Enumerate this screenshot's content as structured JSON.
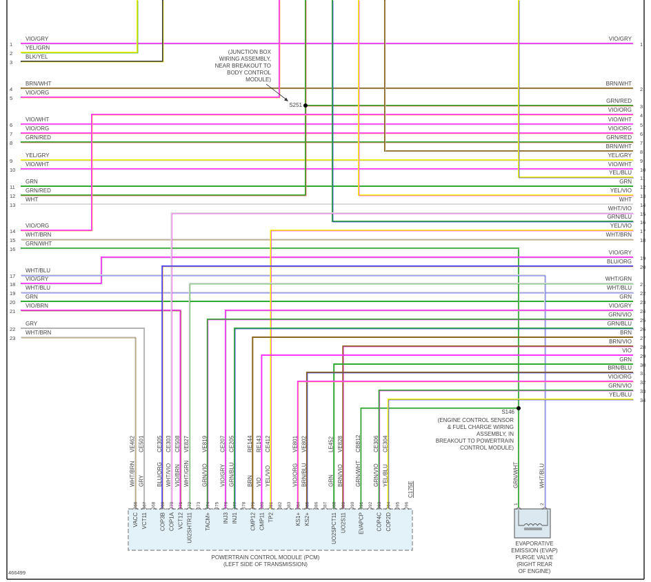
{
  "figure_number": "466499",
  "left_rows": [
    {
      "num": "1",
      "label": "VIO/GRY"
    },
    {
      "num": "2",
      "label": "YEL/GRN"
    },
    {
      "num": "3",
      "label": "BLK/YEL"
    },
    {
      "num": "4",
      "label": "BRN/WHT"
    },
    {
      "num": "5",
      "label": "VIO/ORG"
    },
    {
      "num": "6",
      "label": "VIO/WHT"
    },
    {
      "num": "7",
      "label": "VIO/ORG"
    },
    {
      "num": "8",
      "label": "GRN/RED"
    },
    {
      "num": "9",
      "label": "YEL/GRY"
    },
    {
      "num": "10",
      "label": "VIO/WHT"
    },
    {
      "num": "11",
      "label": "GRN"
    },
    {
      "num": "12",
      "label": "GRN/RED"
    },
    {
      "num": "13",
      "label": "WHT"
    },
    {
      "num": "14",
      "label": "VIO/ORG"
    },
    {
      "num": "15",
      "label": "WHT/BRN"
    },
    {
      "num": "16",
      "label": "GRN/WHT"
    },
    {
      "num": "17",
      "label": "WHT/BLU"
    },
    {
      "num": "18",
      "label": "VIO/GRY"
    },
    {
      "num": "19",
      "label": "WHT/BLU"
    },
    {
      "num": "20",
      "label": "GRN"
    },
    {
      "num": "21",
      "label": "VIO/BRN"
    },
    {
      "num": "22",
      "label": "GRY"
    },
    {
      "num": "23",
      "label": "WHT/BRN"
    }
  ],
  "right_rows": [
    {
      "num": "1",
      "label": "VIO/GRY"
    },
    {
      "num": "2",
      "label": "BRN/WHT"
    },
    {
      "num": "3",
      "label": "GRN/RED"
    },
    {
      "num": "4",
      "label": "VIO/ORG"
    },
    {
      "num": "5",
      "label": "VIO/WHT"
    },
    {
      "num": "6",
      "label": "VIO/ORG"
    },
    {
      "num": "7",
      "label": "GRN/RED"
    },
    {
      "num": "8",
      "label": "BRN/WHT"
    },
    {
      "num": "9",
      "label": "YEL/GRY"
    },
    {
      "num": "10",
      "label": "VIO/WHT"
    },
    {
      "num": "11",
      "label": "YEL/BLU"
    },
    {
      "num": "12",
      "label": "GRN"
    },
    {
      "num": "13",
      "label": "YEL/VIO"
    },
    {
      "num": "14",
      "label": "WHT"
    },
    {
      "num": "15",
      "label": "WHT/VIO"
    },
    {
      "num": "16",
      "label": "GRN/BLU"
    },
    {
      "num": "17",
      "label": "YEL/VIO"
    },
    {
      "num": "18",
      "label": "WHT/BRN"
    },
    {
      "num": "19",
      "label": "VIO/GRY"
    },
    {
      "num": "20",
      "label": "BLU/ORG"
    },
    {
      "num": "21",
      "label": "WHT/GRN"
    },
    {
      "num": "22",
      "label": "WHT/BLU"
    },
    {
      "num": "23",
      "label": "GRN"
    },
    {
      "num": "24",
      "label": "VIO/GRY"
    },
    {
      "num": "25",
      "label": "GRN/VIO"
    },
    {
      "num": "26",
      "label": "GRN/BLU"
    },
    {
      "num": "27",
      "label": "BRN"
    },
    {
      "num": "28",
      "label": "BRN/VIO"
    },
    {
      "num": "29",
      "label": "VIO"
    },
    {
      "num": "30",
      "label": "GRN"
    },
    {
      "num": "31",
      "label": "BRN/BLU"
    },
    {
      "num": "32",
      "label": "VIO/ORG"
    },
    {
      "num": "33",
      "label": "GRN/VIO"
    },
    {
      "num": "34",
      "label": "YEL/BLU"
    }
  ],
  "splices": {
    "s251": {
      "id": "S251",
      "note": [
        "(JUNCTION BOX",
        "WIRING ASSEMBLY,",
        "NEAR BREAKOUT TO",
        "BODY CONTROL",
        "MODULE)"
      ]
    },
    "s146": {
      "id": "S146",
      "note": [
        "(ENGINE CONTROL SENSOR",
        "& FUEL CHARGE WIRING",
        "ASSEMBLY, IN",
        "BREAKOUT TO POWERTRAIN",
        "CONTROL MODULE)"
      ]
    }
  },
  "pcm": {
    "connector_id": "C175E",
    "title": [
      "POWERTRAIN CONTROL MODULE (PCM)",
      "(LEFT SIDE OF TRANSMISSION)"
    ],
    "pins": [
      {
        "pin": "66",
        "name": "VACC",
        "wire": "WHT/BRN",
        "circuit": "VE462"
      },
      {
        "pin": "67",
        "name": "VCT11",
        "wire": "GRY",
        "circuit": "CE501"
      },
      {
        "pin": "68",
        "name": "",
        "wire": "",
        "circuit": ""
      },
      {
        "pin": "69",
        "name": "COP3B",
        "wire": "BLU/ORG",
        "circuit": "CE305"
      },
      {
        "pin": "70",
        "name": "COP1A",
        "wire": "WHT/VIO",
        "circuit": "CE303"
      },
      {
        "pin": "71",
        "name": "VCT12",
        "wire": "VIO/BRN",
        "circuit": "CE508"
      },
      {
        "pin": "72",
        "name": "U02SHTR11",
        "wire": "WHT/GRN",
        "circuit": "VE827"
      },
      {
        "pin": "73",
        "name": "",
        "wire": "",
        "circuit": ""
      },
      {
        "pin": "74",
        "name": "TACM+",
        "wire": "GRN/VIO",
        "circuit": "VE819"
      },
      {
        "pin": "75",
        "name": "",
        "wire": "",
        "circuit": ""
      },
      {
        "pin": "76",
        "name": "INJ3",
        "wire": "VIO/GRY",
        "circuit": "CE207"
      },
      {
        "pin": "77",
        "name": "INJ1",
        "wire": "GRN/BLU",
        "circuit": "CE205"
      },
      {
        "pin": "78",
        "name": "",
        "wire": "",
        "circuit": ""
      },
      {
        "pin": "79",
        "name": "CMP12",
        "wire": "BRN",
        "circuit": "RE144"
      },
      {
        "pin": "80",
        "name": "CMP11",
        "wire": "VIO",
        "circuit": "RE143"
      },
      {
        "pin": "81",
        "name": "TP2",
        "wire": "YEL/VIO",
        "circuit": "CE412"
      },
      {
        "pin": "82",
        "name": "",
        "wire": "",
        "circuit": ""
      },
      {
        "pin": "83",
        "name": "",
        "wire": "",
        "circuit": ""
      },
      {
        "pin": "84",
        "name": "KS1+",
        "wire": "VIO/ORG",
        "circuit": "VE801"
      },
      {
        "pin": "85",
        "name": "KS2+",
        "wire": "BRN/BLU",
        "circuit": "VE802"
      },
      {
        "pin": "86",
        "name": "",
        "wire": "",
        "circuit": ""
      },
      {
        "pin": "87",
        "name": "",
        "wire": "",
        "circuit": ""
      },
      {
        "pin": "88",
        "name": "UO2SPCT11",
        "wire": "GRN",
        "circuit": "LE452"
      },
      {
        "pin": "89",
        "name": "UO2S11",
        "wire": "BRN/VIO",
        "circuit": "VE828"
      },
      {
        "pin": "90",
        "name": "",
        "wire": "",
        "circuit": ""
      },
      {
        "pin": "91",
        "name": "EVAPCP",
        "wire": "GRN/WHT",
        "circuit": "CBB12"
      },
      {
        "pin": "92",
        "name": "",
        "wire": "",
        "circuit": ""
      },
      {
        "pin": "93",
        "name": "COP4C",
        "wire": "GRN/VIO",
        "circuit": "CE306"
      },
      {
        "pin": "94",
        "name": "COP2D",
        "wire": "YEL/BLU",
        "circuit": "CE304"
      },
      {
        "pin": "95",
        "name": "",
        "wire": "",
        "circuit": ""
      },
      {
        "pin": "96",
        "name": "",
        "wire": "",
        "circuit": ""
      }
    ]
  },
  "evap": {
    "title": [
      "EVAPORATIVE",
      "EMISSION (EVAP)",
      "PURGE VALVE",
      "(RIGHT REAR",
      "OF ENGINE)"
    ],
    "pins": [
      {
        "pin": "1",
        "wire": "GRN/WHT"
      },
      {
        "pin": "2",
        "wire": "WHT/BLU"
      }
    ],
    "icon": "solenoid-coil-icon"
  },
  "wire_colors": {
    "VIO": "#ff33ff",
    "GRY": "#b4b4b4",
    "YEL": "#f2f200",
    "GRN": "#2faa2f",
    "BLK": "#444444",
    "BRN": "#8a651c",
    "WHT": "#d9d9d9",
    "ORG": "#ffb347",
    "RED": "#ff5050",
    "BLU": "#3838ff"
  }
}
